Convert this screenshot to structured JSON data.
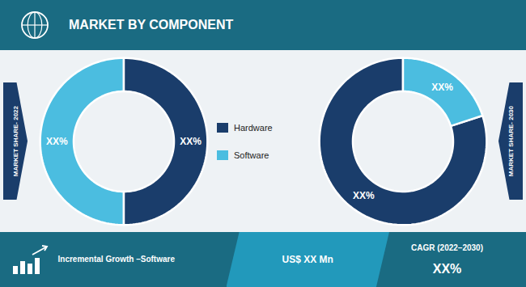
{
  "title": "MARKET BY COMPONENT",
  "annotations": [
    "Incremental Growth –Software",
    "US$ XX Mn",
    "CAGR (2022–2030)",
    "XX%"
  ],
  "legend": "center",
  "chart_data": [
    {
      "type": "donut",
      "title": "MARKET SHARE- 2022",
      "categories": [
        "Software",
        "Hardware"
      ],
      "values": [
        50,
        50
      ],
      "value_labels": [
        "XX%",
        "XX%"
      ],
      "colors": [
        "#4bbde0",
        "#1a3d6b"
      ],
      "data_labels": true
    },
    {
      "type": "donut",
      "title": "MARKET SHARE- 2030",
      "categories": [
        "Hardware",
        "Software"
      ],
      "values": [
        80,
        20
      ],
      "value_labels": [
        "XX%",
        "XX%"
      ],
      "colors": [
        "#1a3d6b",
        "#4bbde0"
      ],
      "data_labels": true
    }
  ]
}
